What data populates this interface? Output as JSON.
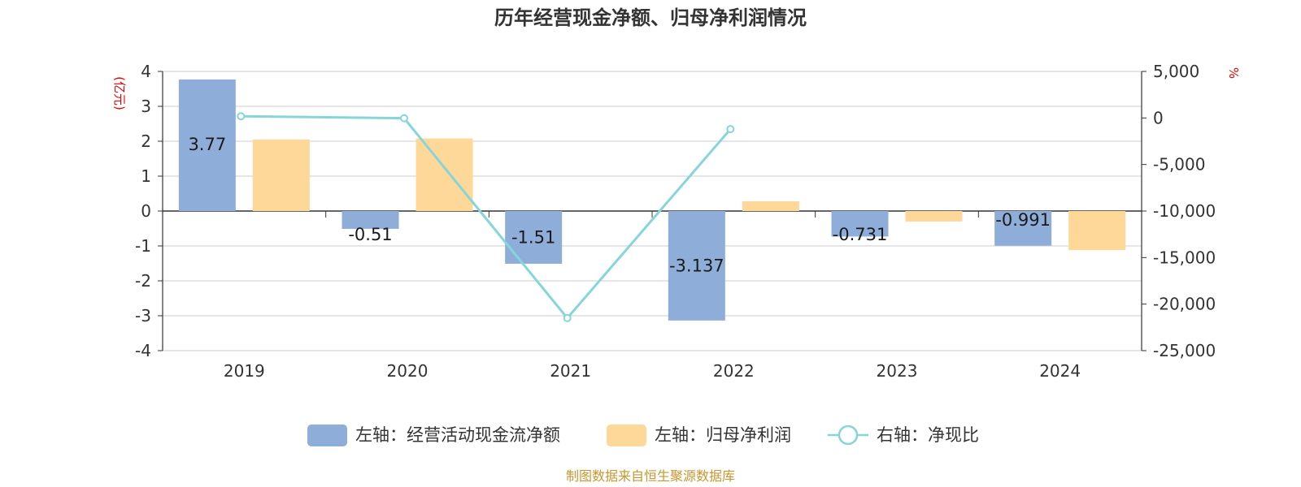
{
  "chart_data": {
    "type": "bar",
    "title": "历年经营现金净额、归母净利润情况",
    "categories": [
      "2019",
      "2020",
      "2021",
      "2022",
      "2023",
      "2024"
    ],
    "series": [
      {
        "name": "左轴：经营活动现金流净额",
        "axis": "left",
        "type": "bar",
        "color": "#8eadd9",
        "values": [
          3.77,
          -0.51,
          -1.51,
          -3.137,
          -0.731,
          -0.991
        ],
        "labels": [
          "3.77",
          "-0.51",
          "-1.51",
          "-3.137",
          "-0.731",
          "-0.991"
        ]
      },
      {
        "name": "左轴：归母净利润",
        "axis": "left",
        "type": "bar",
        "color": "#fdd898",
        "values": [
          2.05,
          2.08,
          0.0,
          0.28,
          -0.3,
          -1.12
        ]
      },
      {
        "name": "右轴：净现比",
        "axis": "right",
        "type": "line",
        "color": "#86d5da",
        "values": [
          184,
          -24,
          -21500,
          -1200,
          null,
          null
        ]
      }
    ],
    "left_axis": {
      "unit": "(亿元)",
      "ylim": [
        -4,
        4
      ],
      "ticks": [
        "4",
        "3",
        "2",
        "1",
        "0",
        "-1",
        "-2",
        "-3",
        "-4"
      ],
      "tick_values": [
        4,
        3,
        2,
        1,
        0,
        -1,
        -2,
        -3,
        -4
      ]
    },
    "right_axis": {
      "unit": "%",
      "ylim": [
        -25000,
        5000
      ],
      "ticks": [
        "5,000",
        "0",
        "-5,000",
        "-10,000",
        "-15,000",
        "-20,000",
        "-25,000"
      ],
      "tick_values": [
        5000,
        0,
        -5000,
        -10000,
        -15000,
        -20000,
        -25000
      ]
    },
    "grid": true,
    "legend_position": "bottom"
  },
  "source": "制图数据来自恒生聚源数据库"
}
